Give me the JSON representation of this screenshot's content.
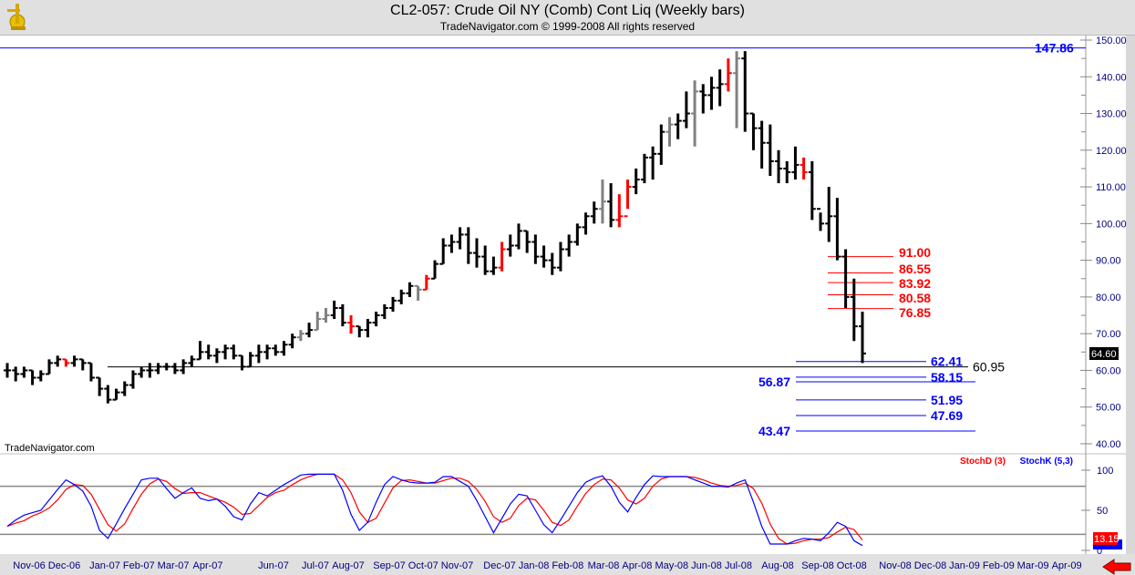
{
  "header": {
    "title": "CL2-057:  Crude Oil NY (Comb) Cont Liq  (Weekly bars)",
    "subtitle": "TradeNavigator.com © 1999-2008 All rights reserved",
    "logo_icon": "sextant-logo-icon"
  },
  "watermark": "TradeNavigator.com",
  "colors": {
    "bar": "#000000",
    "bar_red": "#ff0000",
    "bar_gray": "#808080",
    "resistance": "#ff0000",
    "support": "#0000ff",
    "axis_text": "#000080",
    "stoch_d": "#ff0000",
    "stoch_k": "#0000ff"
  },
  "chart_data": [
    {
      "type": "ohlc",
      "title": "CL2-057:  Crude Oil NY (Comb) Cont Liq  (Weekly bars)",
      "ylim": [
        40,
        150
      ],
      "yticks": [
        "40.00",
        "50.00",
        "60.00",
        "70.00",
        "80.00",
        "90.00",
        "100.00",
        "110.00",
        "120.00",
        "130.00",
        "140.00",
        "150.00"
      ],
      "last_price": "64.60",
      "bar_fields": [
        "high",
        "low",
        "close"
      ],
      "bars": [
        [
          62,
          58,
          60
        ],
        [
          61,
          57,
          59
        ],
        [
          61,
          58,
          60
        ],
        [
          60,
          56,
          58
        ],
        [
          60,
          57,
          59
        ],
        [
          63,
          59,
          62
        ],
        [
          64,
          61,
          63
        ],
        [
          63,
          61,
          62
        ],
        [
          64,
          61,
          63
        ],
        [
          63,
          60,
          62
        ],
        [
          62,
          57,
          58
        ],
        [
          58,
          53,
          55
        ],
        [
          56,
          51,
          52
        ],
        [
          55,
          52,
          54
        ],
        [
          57,
          53,
          56
        ],
        [
          60,
          55,
          59
        ],
        [
          61,
          58,
          60
        ],
        [
          62,
          58,
          60
        ],
        [
          62,
          59,
          61
        ],
        [
          62,
          60,
          61
        ],
        [
          62,
          59,
          60
        ],
        [
          63,
          59,
          62
        ],
        [
          64,
          61,
          63
        ],
        [
          68,
          63,
          65
        ],
        [
          67,
          63,
          64
        ],
        [
          66,
          62,
          65
        ],
        [
          67,
          63,
          66
        ],
        [
          67,
          63,
          64
        ],
        [
          64,
          60,
          61
        ],
        [
          65,
          61,
          64
        ],
        [
          67,
          62,
          65
        ],
        [
          67,
          63,
          66
        ],
        [
          67,
          64,
          65
        ],
        [
          68,
          64,
          67
        ],
        [
          70,
          66,
          69
        ],
        [
          71,
          68,
          70
        ],
        [
          73,
          69,
          71
        ],
        [
          76,
          71,
          74
        ],
        [
          77,
          73,
          75
        ],
        [
          79,
          74,
          77
        ],
        [
          78,
          72,
          73
        ],
        [
          75,
          70,
          72
        ],
        [
          72,
          69,
          71
        ],
        [
          74,
          69,
          73
        ],
        [
          76,
          72,
          75
        ],
        [
          78,
          74,
          77
        ],
        [
          80,
          76,
          79
        ],
        [
          82,
          78,
          81
        ],
        [
          84,
          80,
          83
        ],
        [
          83,
          79,
          82
        ],
        [
          86,
          82,
          85
        ],
        [
          90,
          85,
          89
        ],
        [
          96,
          89,
          94
        ],
        [
          97,
          92,
          95
        ],
        [
          99,
          93,
          97
        ],
        [
          99,
          89,
          92
        ],
        [
          96,
          88,
          91
        ],
        [
          94,
          86,
          87
        ],
        [
          91,
          86,
          88
        ],
        [
          95,
          87,
          93
        ],
        [
          97,
          91,
          94
        ],
        [
          100,
          93,
          98
        ],
        [
          98,
          92,
          95
        ],
        [
          97,
          89,
          91
        ],
        [
          94,
          88,
          90
        ],
        [
          92,
          86,
          88
        ],
        [
          95,
          87,
          93
        ],
        [
          97,
          91,
          95
        ],
        [
          100,
          94,
          99
        ],
        [
          103,
          97,
          102
        ],
        [
          106,
          100,
          104
        ],
        [
          112,
          100,
          106
        ],
        [
          111,
          99,
          101
        ],
        [
          108,
          99,
          102
        ],
        [
          112,
          104,
          110
        ],
        [
          115,
          108,
          112
        ],
        [
          119,
          111,
          118
        ],
        [
          121,
          112,
          119
        ],
        [
          127,
          116,
          125
        ],
        [
          129,
          121,
          127
        ],
        [
          130,
          123,
          128
        ],
        [
          136,
          126,
          130
        ],
        [
          139,
          121,
          136
        ],
        [
          138,
          130,
          135
        ],
        [
          140,
          131,
          137
        ],
        [
          142,
          132,
          138
        ],
        [
          145,
          136,
          141
        ],
        [
          147,
          126,
          145
        ],
        [
          147,
          125,
          130
        ],
        [
          130,
          120,
          126
        ],
        [
          128,
          115,
          122
        ],
        [
          127,
          113,
          117
        ],
        [
          120,
          111,
          115
        ],
        [
          117,
          111,
          114
        ],
        [
          121,
          112,
          116
        ],
        [
          118,
          112,
          114
        ],
        [
          117,
          101,
          104
        ],
        [
          103,
          98,
          100
        ],
        [
          110,
          95,
          102
        ],
        [
          107,
          90,
          91
        ],
        [
          93,
          77,
          80
        ],
        [
          85,
          68,
          72
        ],
        [
          76,
          62,
          64.6
        ]
      ],
      "red_bars": [
        7,
        41,
        50,
        59,
        73,
        74,
        86,
        95
      ],
      "gray_bars": [
        35,
        37,
        38,
        49,
        71,
        79,
        82,
        87
      ],
      "levels": [
        {
          "value": 147.86,
          "label": "147.86",
          "kind": "high"
        },
        {
          "value": 60.95,
          "label": "60.95",
          "kind": "pivot"
        },
        {
          "value": 91.0,
          "label": "91.00",
          "kind": "resistance"
        },
        {
          "value": 86.55,
          "label": "86.55",
          "kind": "resistance"
        },
        {
          "value": 83.92,
          "label": "83.92",
          "kind": "resistance"
        },
        {
          "value": 80.58,
          "label": "80.58",
          "kind": "resistance"
        },
        {
          "value": 76.85,
          "label": "76.85",
          "kind": "resistance"
        },
        {
          "value": 62.41,
          "label": "62.41",
          "kind": "support"
        },
        {
          "value": 58.15,
          "label": "58.15",
          "kind": "support"
        },
        {
          "value": 56.87,
          "label": "56.87",
          "kind": "support-left"
        },
        {
          "value": 51.95,
          "label": "51.95",
          "kind": "support"
        },
        {
          "value": 47.69,
          "label": "47.69",
          "kind": "support"
        },
        {
          "value": 43.47,
          "label": "43.47",
          "kind": "support-left"
        }
      ]
    },
    {
      "type": "line",
      "ylim": [
        0,
        100
      ],
      "yticks": [
        "0",
        "50",
        "100"
      ],
      "reference_lines": [
        20,
        80
      ],
      "legend": [
        "StochD (3)",
        "StochK (5,3)"
      ],
      "legend_position": "top-right",
      "last_value": "13.15",
      "series": [
        {
          "name": "StochK (5,3)",
          "values": [
            30,
            38,
            44,
            47,
            50,
            63,
            76,
            88,
            82,
            74,
            55,
            25,
            15,
            33,
            52,
            70,
            88,
            90,
            90,
            77,
            65,
            72,
            78,
            65,
            62,
            64,
            55,
            42,
            38,
            58,
            72,
            68,
            75,
            82,
            88,
            94,
            95,
            95,
            95,
            95,
            75,
            45,
            25,
            35,
            60,
            82,
            92,
            88,
            85,
            84,
            84,
            85,
            92,
            92,
            86,
            80,
            62,
            42,
            22,
            40,
            58,
            70,
            68,
            50,
            32,
            22,
            38,
            55,
            72,
            85,
            90,
            93,
            80,
            60,
            48,
            66,
            82,
            93,
            92,
            92,
            92,
            92,
            88,
            84,
            80,
            80,
            79,
            84,
            88,
            60,
            30,
            8,
            8,
            8,
            12,
            15,
            14,
            12,
            22,
            35,
            30,
            12,
            6
          ]
        },
        {
          "name": "StochD (3)",
          "values": [
            30,
            34,
            37,
            43,
            47,
            53,
            63,
            76,
            82,
            81,
            70,
            51,
            32,
            24,
            33,
            52,
            70,
            83,
            89,
            86,
            77,
            71,
            72,
            72,
            68,
            64,
            60,
            54,
            45,
            46,
            56,
            66,
            72,
            75,
            82,
            88,
            92,
            95,
            95,
            95,
            88,
            72,
            48,
            35,
            40,
            59,
            78,
            87,
            88,
            86,
            84,
            84,
            87,
            90,
            90,
            86,
            76,
            61,
            42,
            35,
            40,
            56,
            65,
            63,
            50,
            35,
            31,
            38,
            55,
            71,
            82,
            89,
            88,
            78,
            63,
            58,
            65,
            80,
            89,
            92,
            92,
            92,
            91,
            88,
            84,
            81,
            80,
            81,
            84,
            77,
            59,
            33,
            15,
            8,
            9,
            12,
            14,
            14,
            16,
            23,
            29,
            26,
            13
          ]
        }
      ]
    }
  ],
  "x_axis": {
    "labels": [
      "Nov-06",
      "Dec-06",
      "Jan-07",
      "Feb-07",
      "Mar-07",
      "Apr-07",
      "Jun-07",
      "Jul-07",
      "Aug-07",
      "Sep-07",
      "Oct-07",
      "Nov-07",
      "Dec-07",
      "Jan-08",
      "Feb-08",
      "Mar-08",
      "Apr-08",
      "May-08",
      "Jun-08",
      "Jul-08",
      "Aug-08",
      "Sep-08",
      "Oct-08",
      "Nov-08",
      "Dec-08",
      "Jan-09",
      "Feb-09",
      "Mar-09",
      "Apr-09"
    ]
  },
  "scroll_arrow_icon": "arrow-left-icon"
}
